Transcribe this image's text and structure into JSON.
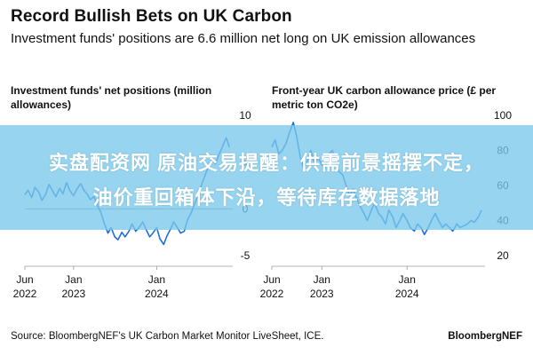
{
  "header": {
    "title": "Record Bullish Bets on UK Carbon",
    "subtitle": "Investment funds' positions are 6.6 million net long on UK emission allowances"
  },
  "overlay_banner": {
    "line1": "实盘配资网 原油交易提醒：供需前景摇摆不定，",
    "line2": "油价重回箱体下沿，等待库存数据落地",
    "color": "#78c8eb"
  },
  "footer": {
    "source": "Source: BloombergNEF's UK Carbon Market Monitor LiveSheet, ICE.",
    "brand": "BloombergNEF"
  },
  "colors": {
    "series": "#1f6fd6",
    "zero_line": "#8a8a8a",
    "grid": "#e6e6e6"
  },
  "chart_data": [
    {
      "type": "line",
      "title": "Investment funds' net positions (million allowances)",
      "ylim": [
        -5,
        10
      ],
      "yticks": [
        -5,
        0,
        5,
        10
      ],
      "y_tick_labels": [
        "-5",
        "0",
        "5",
        "10"
      ],
      "x_tick_labels": [
        {
          "top": "Jun",
          "bottom": "2022",
          "date": "2022-06-01"
        },
        {
          "top": "Jan",
          "bottom": "2023",
          "date": "2023-01-01"
        },
        {
          "top": "Jan",
          "bottom": "2024",
          "date": "2024-01-01"
        }
      ],
      "xlim": [
        "2022-06-01",
        "2024-11-30"
      ],
      "zero_line": 0,
      "series": [
        {
          "x": [
            "2022-06-01",
            "2022-06-15",
            "2022-07-01",
            "2022-07-15",
            "2022-08-01",
            "2022-08-15",
            "2022-09-01",
            "2022-09-15",
            "2022-10-01",
            "2022-10-15",
            "2022-11-01",
            "2022-11-15",
            "2022-12-01",
            "2022-12-15",
            "2023-01-01",
            "2023-01-15",
            "2023-02-01",
            "2023-02-15",
            "2023-03-01",
            "2023-03-15",
            "2023-04-01",
            "2023-04-15",
            "2023-05-01",
            "2023-05-15",
            "2023-06-01",
            "2023-06-15",
            "2023-07-01",
            "2023-07-15",
            "2023-08-01",
            "2023-08-15",
            "2023-09-01",
            "2023-09-15",
            "2023-10-01",
            "2023-10-15",
            "2023-11-01",
            "2023-11-15",
            "2023-12-01",
            "2023-12-15",
            "2024-01-01",
            "2024-01-15",
            "2024-02-01",
            "2024-02-15",
            "2024-03-01",
            "2024-03-15",
            "2024-04-01",
            "2024-04-15",
            "2024-05-01",
            "2024-05-15",
            "2024-06-01",
            "2024-06-15",
            "2024-07-01",
            "2024-07-15",
            "2024-08-01",
            "2024-08-15",
            "2024-09-01",
            "2024-09-15",
            "2024-10-01",
            "2024-10-15",
            "2024-11-01",
            "2024-11-15"
          ],
          "y": [
            1.5,
            2.0,
            1.2,
            2.3,
            1.8,
            0.9,
            1.6,
            2.6,
            1.9,
            1.3,
            2.2,
            1.6,
            2.8,
            2.0,
            1.4,
            2.1,
            2.7,
            2.0,
            1.6,
            1.0,
            1.3,
            0.4,
            -0.4,
            -1.5,
            -2.6,
            -2.0,
            -3.0,
            -3.3,
            -2.5,
            -3.0,
            -2.4,
            -1.6,
            -2.4,
            -2.0,
            -1.4,
            -2.2,
            -3.0,
            -2.6,
            -2.0,
            -3.2,
            -3.8,
            -2.9,
            -2.2,
            -1.4,
            -2.0,
            -2.6,
            -2.4,
            -1.2,
            -0.4,
            0.5,
            1.4,
            2.5,
            3.6,
            4.6,
            5.4,
            4.8,
            5.8,
            6.6,
            7.6,
            6.6
          ]
        }
      ]
    },
    {
      "type": "line",
      "title": "Front-year UK carbon allowance price (£ per metric ton CO2e)",
      "ylim": [
        20,
        100
      ],
      "yticks": [
        20,
        40,
        60,
        80,
        100
      ],
      "y_tick_labels": [
        "20",
        "40",
        "60",
        "80",
        "100"
      ],
      "x_tick_labels": [
        {
          "top": "Jun",
          "bottom": "2022",
          "date": "2022-06-01"
        },
        {
          "top": "Jan",
          "bottom": "2023",
          "date": "2023-01-01"
        },
        {
          "top": "Jan",
          "bottom": "2024",
          "date": "2024-01-01"
        }
      ],
      "xlim": [
        "2022-06-01",
        "2024-11-30"
      ],
      "series": [
        {
          "x": [
            "2022-06-01",
            "2022-06-15",
            "2022-07-01",
            "2022-07-15",
            "2022-08-01",
            "2022-08-15",
            "2022-09-01",
            "2022-09-15",
            "2022-10-01",
            "2022-10-15",
            "2022-11-01",
            "2022-11-15",
            "2022-12-01",
            "2022-12-15",
            "2023-01-01",
            "2023-01-15",
            "2023-02-01",
            "2023-02-15",
            "2023-03-01",
            "2023-03-15",
            "2023-04-01",
            "2023-04-15",
            "2023-05-01",
            "2023-05-15",
            "2023-06-01",
            "2023-06-15",
            "2023-07-01",
            "2023-07-15",
            "2023-08-01",
            "2023-08-15",
            "2023-09-01",
            "2023-09-15",
            "2023-10-01",
            "2023-10-15",
            "2023-11-01",
            "2023-11-15",
            "2023-12-01",
            "2023-12-15",
            "2024-01-01",
            "2024-01-15",
            "2024-02-01",
            "2024-02-15",
            "2024-03-01",
            "2024-03-15",
            "2024-04-01",
            "2024-04-15",
            "2024-05-01",
            "2024-05-15",
            "2024-06-01",
            "2024-06-15",
            "2024-07-01",
            "2024-07-15",
            "2024-08-01",
            "2024-08-15",
            "2024-09-01",
            "2024-09-15",
            "2024-10-01",
            "2024-10-15",
            "2024-11-01",
            "2024-11-15"
          ],
          "y": [
            82,
            86,
            78,
            80,
            84,
            90,
            96,
            88,
            76,
            70,
            74,
            80,
            72,
            76,
            72,
            70,
            78,
            80,
            74,
            68,
            66,
            60,
            54,
            58,
            52,
            48,
            44,
            40,
            46,
            50,
            44,
            42,
            38,
            46,
            42,
            36,
            40,
            44,
            40,
            36,
            34,
            38,
            36,
            32,
            36,
            40,
            44,
            40,
            36,
            38,
            36,
            34,
            38,
            36,
            37,
            38,
            40,
            39,
            42,
            46
          ]
        }
      ]
    }
  ]
}
